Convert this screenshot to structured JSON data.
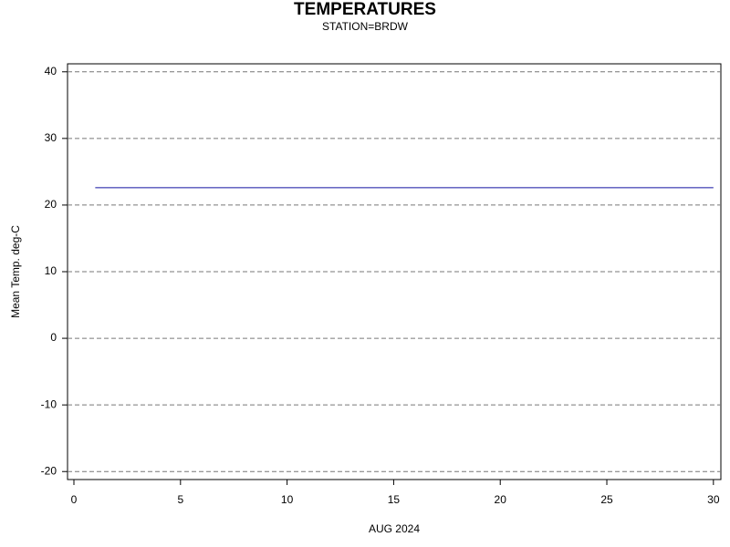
{
  "chart_data": {
    "type": "line",
    "title": "TEMPERATURES",
    "subtitle": "STATION=BRDW",
    "x_label": "AUG 2024",
    "y_label": "Mean Temp. deg-C",
    "x": [
      1,
      2,
      3,
      4,
      5,
      6,
      7,
      8,
      9,
      10,
      11,
      12,
      13,
      14,
      15,
      16,
      17,
      18,
      19,
      20,
      21,
      22,
      23,
      24,
      25,
      26,
      27,
      28,
      29,
      30
    ],
    "values": [
      22.6,
      22.6,
      22.6,
      22.6,
      22.6,
      22.6,
      22.6,
      22.6,
      22.6,
      22.6,
      22.6,
      22.6,
      22.6,
      22.6,
      22.6,
      22.6,
      22.6,
      22.6,
      22.6,
      22.6,
      22.6,
      22.6,
      22.6,
      22.6,
      22.6,
      22.6,
      22.6,
      22.6,
      22.6,
      22.6
    ],
    "color": "#1010a0",
    "xlim": [
      -0.3,
      30.35
    ],
    "xticks": [
      0,
      5,
      10,
      15,
      20,
      25,
      30
    ],
    "ylim": [
      -21.2,
      41.2
    ],
    "yticks": [
      -20,
      -10,
      0,
      10,
      20,
      30,
      40
    ],
    "grid": true
  }
}
